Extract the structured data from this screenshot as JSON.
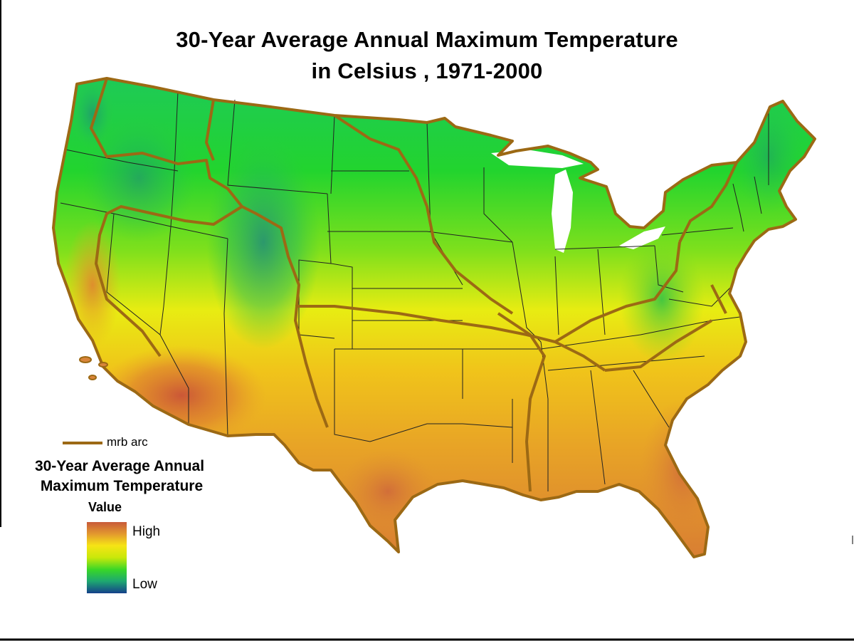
{
  "title_line1": "30-Year Average Annual Maximum Temperature",
  "title_line2": "in Celsius , 1971-2000",
  "legend": {
    "line_label": "mrb arc",
    "line_color": "#9c6914",
    "heading_line1": "30-Year Average Annual",
    "heading_line2": "Maximum Temperature",
    "value_label": "Value",
    "high_label": "High",
    "low_label": "Low",
    "ramp_colors": [
      "#c85a3a",
      "#e39a2e",
      "#f6e415",
      "#c8e80a",
      "#38d628",
      "#1ea870",
      "#15408a"
    ]
  }
}
